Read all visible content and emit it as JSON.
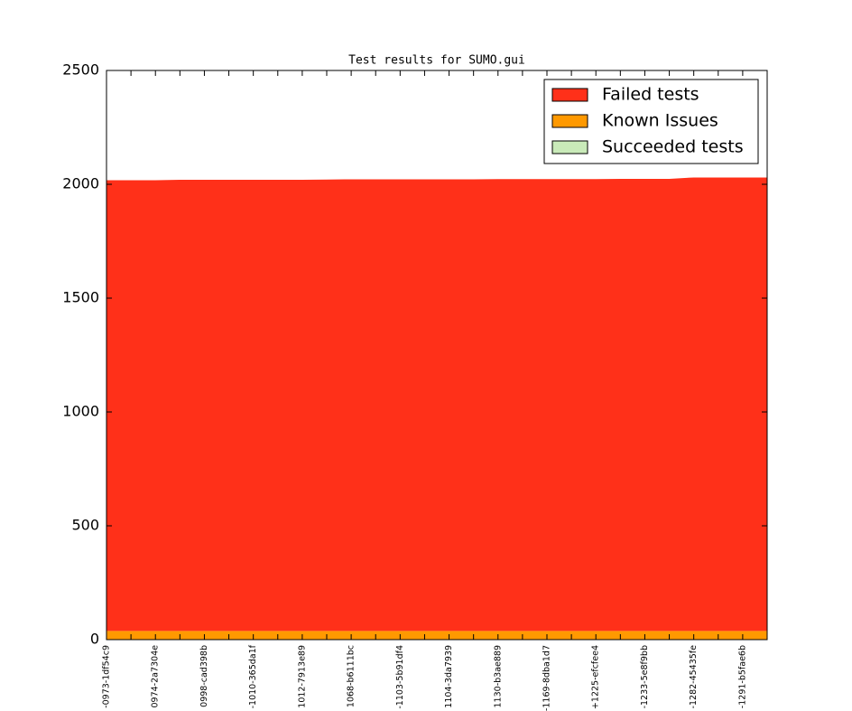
{
  "chart_data": {
    "type": "stackedarea",
    "title": "Test results for SUMO.gui",
    "categories": [
      "-0973-1df54c9",
      null,
      "0974-2a7304e",
      null,
      "0998-cad398b",
      null,
      "-1010-365da1f",
      null,
      "1012-7913e89",
      null,
      "1068-b6111bc",
      null,
      "-1103-5b91df4",
      null,
      "1104-3da7939",
      null,
      "1130-b3ae889",
      null,
      "-1169-8dba1d7",
      null,
      "+1225-efcfee4",
      null,
      "-1233-5e8f9bb",
      null,
      "-1282-45435fe",
      null,
      "-1291-b5fae6b",
      null
    ],
    "series": [
      {
        "name": "Failed tests",
        "color": "#ff3019",
        "values": [
          1980,
          1980,
          1980,
          1982,
          1982,
          1982,
          1982,
          1982,
          1982,
          1983,
          1984,
          1984,
          1984,
          1984,
          1984,
          1984,
          1985,
          1985,
          1985,
          1985,
          1985,
          1986,
          1986,
          1986,
          1992,
          1992,
          1992,
          1992
        ]
      },
      {
        "name": "Known Issues",
        "color": "#ff9900",
        "values": [
          36,
          36,
          36,
          36,
          36,
          36,
          36,
          36,
          36,
          36,
          36,
          36,
          36,
          36,
          36,
          36,
          36,
          36,
          36,
          36,
          36,
          36,
          36,
          36,
          36,
          36,
          36,
          36
        ]
      },
      {
        "name": "Succeeded tests",
        "color": "#c9eab9",
        "values": [
          2,
          2,
          2,
          2,
          2,
          2,
          2,
          2,
          2,
          2,
          2,
          2,
          2,
          2,
          2,
          2,
          2,
          2,
          2,
          2,
          2,
          2,
          2,
          2,
          2,
          2,
          2,
          2
        ]
      }
    ],
    "ylim": [
      0,
      2500
    ],
    "yticks": [
      0,
      500,
      1000,
      1500,
      2000,
      2500
    ],
    "legend": "upper right"
  }
}
